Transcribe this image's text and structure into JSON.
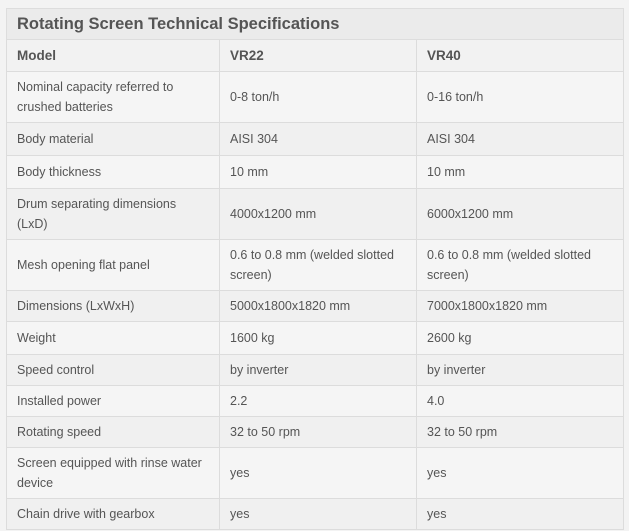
{
  "title": "Rotating Screen Technical Specifications",
  "columns": [
    "Model",
    "VR22",
    "VR40"
  ],
  "rows": [
    [
      "Nominal capacity referred to crushed batteries",
      "0-8 ton/h",
      "0-16 ton/h"
    ],
    [
      "Body material",
      "AISI 304",
      "AISI 304"
    ],
    [
      "Body thickness",
      "10 mm",
      "10 mm"
    ],
    [
      "Drum separating dimensions (LxD)",
      "4000x1200 mm",
      "6000x1200 mm"
    ],
    [
      "Mesh opening flat panel",
      "0.6 to 0.8 mm (welded slotted screen)",
      " 0.6 to 0.8 mm (welded slotted screen)"
    ],
    [
      "Dimensions (LxWxH)",
      "5000x1800x1820 mm",
      "7000x1800x1820 mm"
    ],
    [
      "Weight",
      "1600 kg",
      "2600 kg"
    ],
    [
      "Speed control",
      "by inverter",
      "by inverter"
    ],
    [
      "Installed power",
      "2.2",
      "4.0"
    ],
    [
      "Rotating speed",
      "32 to 50 rpm",
      "32 to 50 rpm"
    ],
    [
      "Screen equipped with rinse water device",
      "yes",
      "yes"
    ],
    [
      "Chain drive with gearbox",
      "yes",
      "yes"
    ]
  ]
}
